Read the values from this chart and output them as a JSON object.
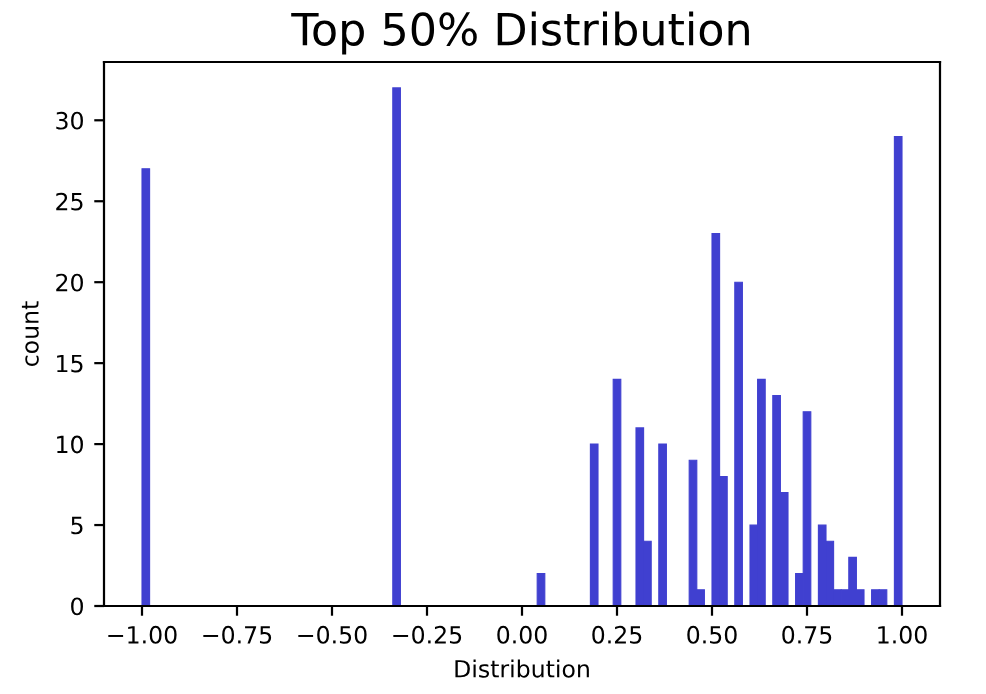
{
  "chart_data": {
    "type": "histogram",
    "title": "Top 50% Distribution",
    "xlabel": "Distribution",
    "ylabel": "count",
    "color": "#4040d0",
    "bins": [
      -1,
      -0.98,
      -0.96,
      -0.94,
      -0.92,
      -0.9,
      -0.88,
      -0.86,
      -0.84,
      -0.82,
      -0.8,
      -0.78,
      -0.76,
      -0.74,
      -0.72,
      -0.7,
      -0.68,
      -0.66,
      -0.64,
      -0.62,
      -0.6,
      -0.58,
      -0.56,
      -0.54,
      -0.52,
      -0.5,
      -0.48,
      -0.46,
      -0.44,
      -0.42,
      -0.4,
      -0.38,
      -0.36,
      -0.34,
      -0.32,
      -0.3,
      -0.28,
      -0.26,
      -0.24,
      -0.22,
      -0.2,
      -0.18,
      -0.16,
      -0.14,
      -0.12,
      -0.1,
      -0.08,
      -0.06,
      -0.04,
      -0.02,
      0,
      0.02,
      0.04,
      0.06,
      0.08,
      0.1,
      0.12,
      0.14,
      0.16,
      0.18,
      0.2,
      0.22,
      0.24,
      0.26,
      0.28,
      0.3,
      0.32,
      0.34,
      0.36,
      0.38,
      0.4,
      0.42,
      0.44,
      0.46,
      0.48,
      0.5,
      0.52,
      0.54,
      0.56,
      0.58,
      0.6,
      0.62,
      0.64,
      0.66,
      0.68,
      0.7,
      0.72,
      0.74,
      0.76,
      0.78,
      0.8,
      0.82,
      0.84,
      0.86,
      0.88,
      0.9,
      0.92,
      0.94,
      0.96,
      0.98,
      1
    ],
    "values": [
      27,
      0,
      0,
      0,
      0,
      0,
      0,
      0,
      0,
      0,
      0,
      0,
      0,
      0,
      0,
      0,
      0,
      0,
      0,
      0,
      0,
      0,
      0,
      0,
      0,
      0,
      0,
      0,
      0,
      0,
      0,
      0,
      0,
      32,
      0,
      0,
      0,
      0,
      0,
      0,
      0,
      0,
      0,
      0,
      0,
      0,
      0,
      0,
      0,
      0,
      0,
      0,
      2,
      0,
      0,
      0,
      0,
      0,
      0,
      10,
      0,
      0,
      14,
      0,
      0,
      11,
      4,
      0,
      10,
      0,
      0,
      0,
      9,
      1,
      0,
      23,
      8,
      0,
      20,
      0,
      5,
      14,
      0,
      13,
      7,
      0,
      2,
      12,
      0,
      5,
      4,
      1,
      1,
      3,
      1,
      0,
      1,
      1,
      0,
      29
    ],
    "xlim": [
      -1.1,
      1.1
    ],
    "xticks": [
      {
        "value": -1,
        "label": "−1.00"
      },
      {
        "value": -0.75,
        "label": "−0.75"
      },
      {
        "value": -0.5,
        "label": "−0.50"
      },
      {
        "value": -0.25,
        "label": "−0.25"
      },
      {
        "value": 0,
        "label": "0.00"
      },
      {
        "value": 0.25,
        "label": "0.25"
      },
      {
        "value": 0.5,
        "label": "0.50"
      },
      {
        "value": 0.75,
        "label": "0.75"
      },
      {
        "value": 1,
        "label": "1.00"
      }
    ],
    "ylim": [
      0,
      33.6
    ],
    "yticks": [
      0,
      5,
      10,
      15,
      20,
      25,
      30
    ],
    "grid": false
  }
}
